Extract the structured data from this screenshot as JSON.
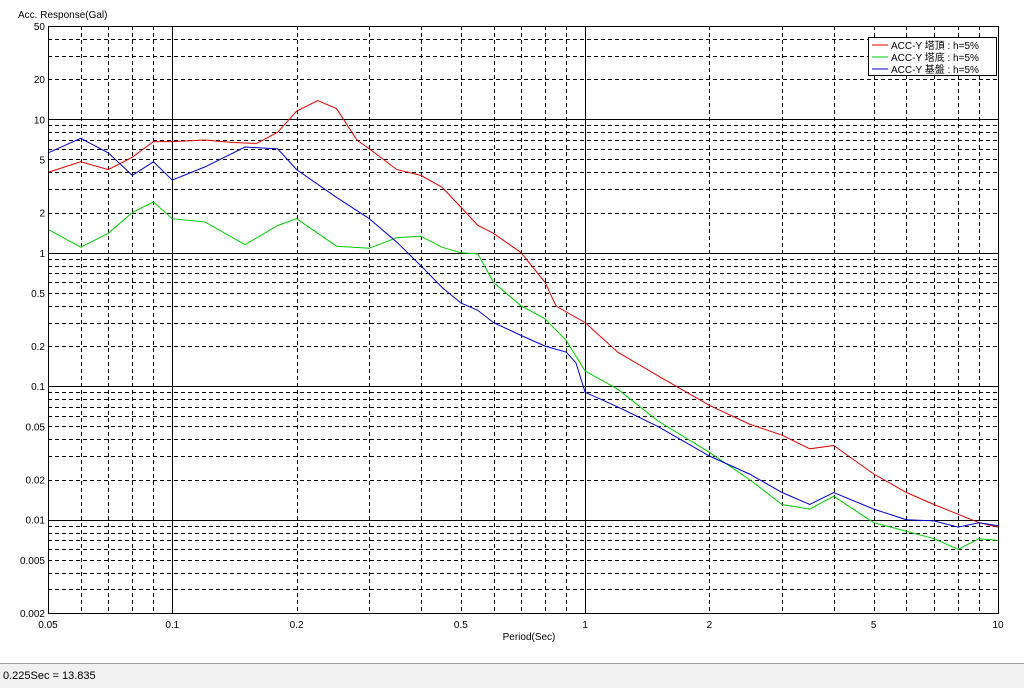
{
  "chart_data": {
    "type": "line",
    "title": "",
    "ylabel": "Acc. Response(Gal)",
    "xlabel": "Period(Sec)",
    "x_scale": "log",
    "y_scale": "log",
    "xlim": [
      0.05,
      10
    ],
    "ylim": [
      0.002,
      50
    ],
    "grid": true,
    "legend_position": "top-right",
    "x_tick_labels": [
      "0.05",
      "0.1",
      "0.2",
      "0.5",
      "1",
      "2",
      "5",
      "10"
    ],
    "y_tick_labels": [
      "50",
      "20",
      "10",
      "5",
      "2",
      "1",
      "0.5",
      "0.2",
      "0.1",
      "0.05",
      "0.02",
      "0.01",
      "0.005",
      "0.002"
    ],
    "series": [
      {
        "name": "ACC-Y 塔頂 : h=5%",
        "color": "#e00000",
        "points": [
          [
            0.05,
            4.0
          ],
          [
            0.06,
            4.8
          ],
          [
            0.07,
            4.2
          ],
          [
            0.08,
            5.2
          ],
          [
            0.09,
            6.8
          ],
          [
            0.1,
            6.8
          ],
          [
            0.12,
            7.0
          ],
          [
            0.14,
            6.7
          ],
          [
            0.16,
            6.6
          ],
          [
            0.18,
            8.0
          ],
          [
            0.2,
            11.5
          ],
          [
            0.225,
            13.8
          ],
          [
            0.25,
            12.0
          ],
          [
            0.28,
            7.0
          ],
          [
            0.3,
            6.0
          ],
          [
            0.35,
            4.2
          ],
          [
            0.4,
            3.8
          ],
          [
            0.45,
            3.1
          ],
          [
            0.5,
            2.2
          ],
          [
            0.55,
            1.6
          ],
          [
            0.6,
            1.4
          ],
          [
            0.7,
            1.0
          ],
          [
            0.8,
            0.6
          ],
          [
            0.85,
            0.4
          ],
          [
            0.9,
            0.36
          ],
          [
            1.0,
            0.3
          ],
          [
            1.2,
            0.18
          ],
          [
            1.5,
            0.12
          ],
          [
            2.0,
            0.072
          ],
          [
            2.5,
            0.052
          ],
          [
            3.0,
            0.043
          ],
          [
            3.5,
            0.034
          ],
          [
            4.0,
            0.036
          ],
          [
            5.0,
            0.022
          ],
          [
            6.0,
            0.016
          ],
          [
            7.0,
            0.013
          ],
          [
            8.0,
            0.011
          ],
          [
            9.0,
            0.0095
          ],
          [
            10.0,
            0.0088
          ]
        ]
      },
      {
        "name": "ACC-Y 塔底 : h=5%",
        "color": "#00cc00",
        "points": [
          [
            0.05,
            1.5
          ],
          [
            0.06,
            1.1
          ],
          [
            0.07,
            1.4
          ],
          [
            0.08,
            2.0
          ],
          [
            0.09,
            2.4
          ],
          [
            0.1,
            1.8
          ],
          [
            0.12,
            1.7
          ],
          [
            0.15,
            1.15
          ],
          [
            0.18,
            1.6
          ],
          [
            0.2,
            1.8
          ],
          [
            0.25,
            1.12
          ],
          [
            0.3,
            1.08
          ],
          [
            0.35,
            1.3
          ],
          [
            0.4,
            1.33
          ],
          [
            0.45,
            1.1
          ],
          [
            0.5,
            1.0
          ],
          [
            0.55,
            0.98
          ],
          [
            0.6,
            0.6
          ],
          [
            0.7,
            0.4
          ],
          [
            0.8,
            0.32
          ],
          [
            0.9,
            0.22
          ],
          [
            1.0,
            0.13
          ],
          [
            1.2,
            0.095
          ],
          [
            1.5,
            0.055
          ],
          [
            2.0,
            0.032
          ],
          [
            2.5,
            0.02
          ],
          [
            3.0,
            0.013
          ],
          [
            3.5,
            0.012
          ],
          [
            4.0,
            0.015
          ],
          [
            5.0,
            0.0095
          ],
          [
            6.0,
            0.0082
          ],
          [
            7.0,
            0.0072
          ],
          [
            8.0,
            0.006
          ],
          [
            9.0,
            0.0072
          ],
          [
            10.0,
            0.007
          ]
        ]
      },
      {
        "name": "ACC-Y 基盤 : h=5%",
        "color": "#0000cc",
        "points": [
          [
            0.05,
            5.6
          ],
          [
            0.06,
            7.2
          ],
          [
            0.07,
            5.6
          ],
          [
            0.08,
            3.8
          ],
          [
            0.09,
            4.8
          ],
          [
            0.1,
            3.5
          ],
          [
            0.12,
            4.4
          ],
          [
            0.15,
            6.2
          ],
          [
            0.18,
            6.0
          ],
          [
            0.2,
            4.2
          ],
          [
            0.25,
            2.6
          ],
          [
            0.3,
            1.8
          ],
          [
            0.35,
            1.2
          ],
          [
            0.4,
            0.8
          ],
          [
            0.45,
            0.55
          ],
          [
            0.5,
            0.42
          ],
          [
            0.55,
            0.37
          ],
          [
            0.6,
            0.3
          ],
          [
            0.7,
            0.24
          ],
          [
            0.8,
            0.2
          ],
          [
            0.9,
            0.18
          ],
          [
            0.95,
            0.15
          ],
          [
            1.0,
            0.09
          ],
          [
            1.2,
            0.07
          ],
          [
            1.5,
            0.05
          ],
          [
            2.0,
            0.03
          ],
          [
            2.5,
            0.022
          ],
          [
            3.0,
            0.016
          ],
          [
            3.5,
            0.013
          ],
          [
            4.0,
            0.016
          ],
          [
            5.0,
            0.012
          ],
          [
            6.0,
            0.01
          ],
          [
            7.0,
            0.0098
          ],
          [
            8.0,
            0.0088
          ],
          [
            9.0,
            0.0095
          ],
          [
            10.0,
            0.009
          ]
        ]
      }
    ]
  },
  "status": {
    "text": "0.225Sec = 13.835"
  }
}
